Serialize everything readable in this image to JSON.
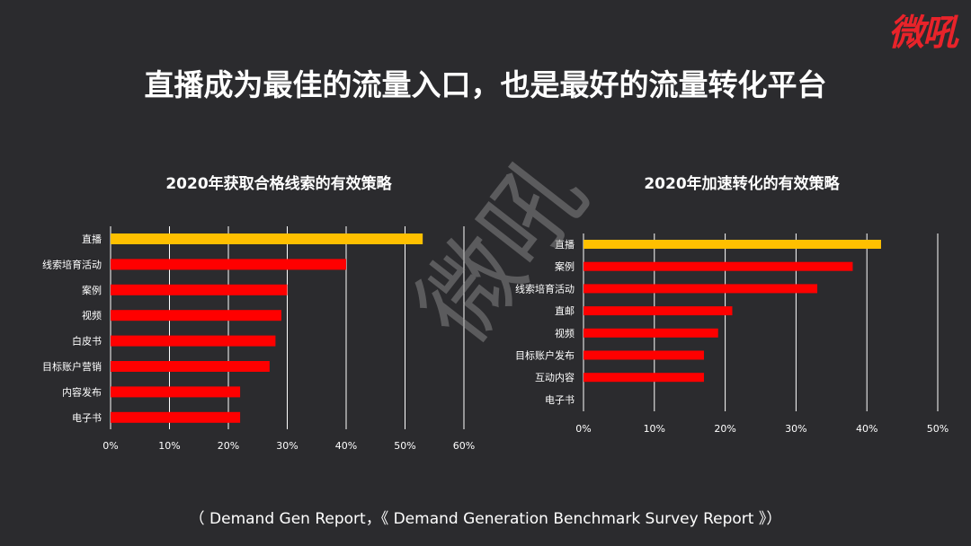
{
  "brand": {
    "logo_text": "微吼",
    "watermark_text": "微吼"
  },
  "headline": "直播成为最佳的流量入口，也是最好的流量转化平台",
  "source": "（ Demand Gen Report，《 Demand Generation Benchmark Survey Report 》）",
  "colors": {
    "highlight": "#ffc000",
    "bar": "#ff0000",
    "background": "#2b2b2e",
    "grid": "#ffffff"
  },
  "chart_data": [
    {
      "type": "bar",
      "orientation": "horizontal",
      "title": "2020年获取合格线索的有效策略",
      "categories": [
        "直播",
        "线索培育活动",
        "案例",
        "视频",
        "白皮书",
        "目标账户营销",
        "内容发布",
        "电子书"
      ],
      "values": [
        53,
        40,
        30,
        29,
        28,
        27,
        22,
        22
      ],
      "unit": "%",
      "xlim": [
        0,
        60
      ],
      "xticks": [
        "0%",
        "10%",
        "20%",
        "30%",
        "40%",
        "50%",
        "60%"
      ],
      "highlight_index": 0,
      "grid": true
    },
    {
      "type": "bar",
      "orientation": "horizontal",
      "title": "2020年加速转化的有效策略",
      "categories": [
        "直播",
        "案例",
        "线索培育活动",
        "直邮",
        "视频",
        "目标账户发布",
        "互动内容",
        "电子书"
      ],
      "values": [
        42,
        38,
        33,
        21,
        19,
        17,
        17,
        0
      ],
      "unit": "%",
      "xlim": [
        0,
        50
      ],
      "xticks": [
        "0%",
        "10%",
        "20%",
        "30%",
        "40%",
        "50%"
      ],
      "highlight_index": 0,
      "grid": true
    }
  ]
}
